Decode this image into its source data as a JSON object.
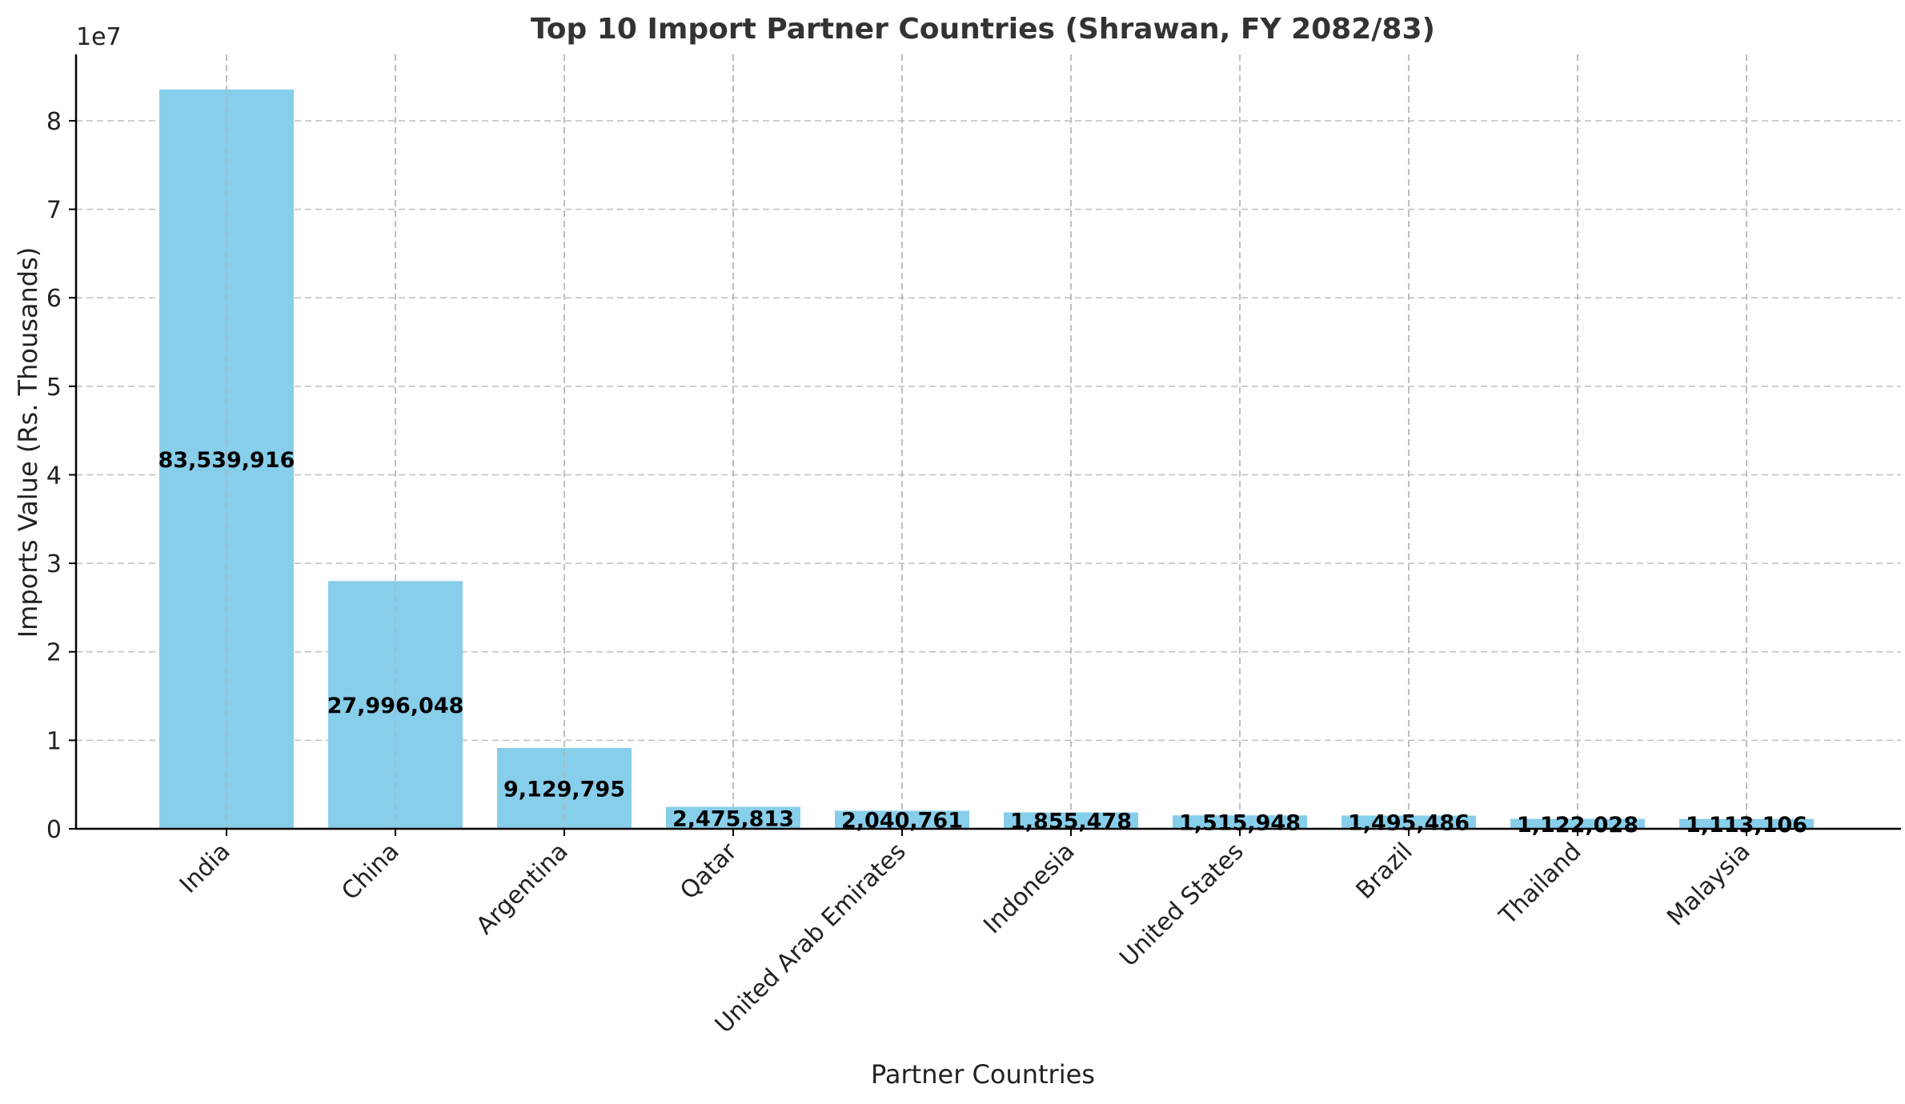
{
  "chart_data": {
    "type": "bar",
    "title": "Top 10 Import Partner Countries (Shrawan, FY 2082/83)",
    "xlabel": "Partner Countries",
    "ylabel": "Imports Value (Rs. Thousands)",
    "y_offset_text": "1e7",
    "y_scale_divisor": 10000000,
    "ylim": [
      0,
      87500000
    ],
    "yticks": [
      0,
      10000000,
      20000000,
      30000000,
      40000000,
      50000000,
      60000000,
      70000000,
      80000000
    ],
    "ytick_labels": [
      "0",
      "1",
      "2",
      "3",
      "4",
      "5",
      "6",
      "7",
      "8"
    ],
    "grid": true,
    "bar_color": "#87CEEB",
    "categories": [
      "India",
      "China",
      "Argentina",
      "Qatar",
      "United Arab Emirates",
      "Indonesia",
      "United States",
      "Brazil",
      "Thailand",
      "Malaysia"
    ],
    "values": [
      83539916,
      27996048,
      9129795,
      2475813,
      2040761,
      1855478,
      1515948,
      1495486,
      1122028,
      1113106
    ],
    "value_labels": [
      "83,539,916",
      "27,996,048",
      "9,129,795",
      "2,475,813",
      "2,040,761",
      "1,855,478",
      "1,515,948",
      "1,495,486",
      "1,122,028",
      "1,113,106"
    ]
  }
}
